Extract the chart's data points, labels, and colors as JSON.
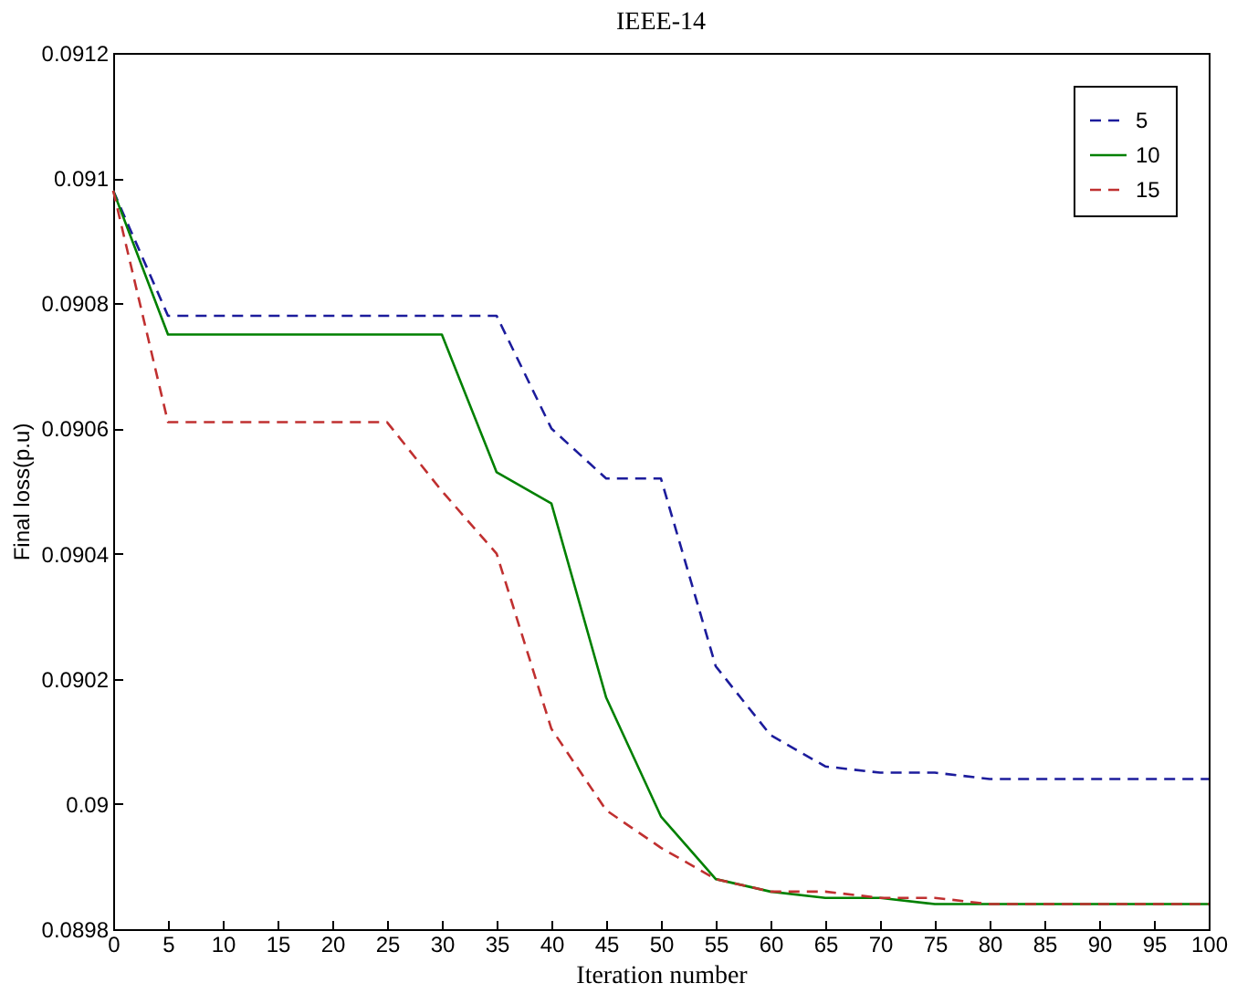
{
  "chart_data": {
    "type": "line",
    "title": "IEEE-14",
    "xlabel": "Iteration number",
    "ylabel": "Final loss(p.u)",
    "x": [
      0,
      5,
      10,
      15,
      20,
      25,
      30,
      35,
      40,
      45,
      50,
      55,
      60,
      65,
      70,
      75,
      80,
      85,
      90,
      95,
      100
    ],
    "series": [
      {
        "name": "5",
        "color": "#1c1c9c",
        "line_style": "dashed",
        "values": [
          0.09098,
          0.09078,
          0.09078,
          0.09078,
          0.09078,
          0.09078,
          0.09078,
          0.09078,
          0.0906,
          0.09052,
          0.09052,
          0.09022,
          0.09011,
          0.09006,
          0.09005,
          0.09005,
          0.09004,
          0.09004,
          0.09004,
          0.09004,
          0.09004
        ]
      },
      {
        "name": "10",
        "color": "#008000",
        "line_style": "solid",
        "values": [
          0.09098,
          0.09075,
          0.09075,
          0.09075,
          0.09075,
          0.09075,
          0.09075,
          0.09053,
          0.09048,
          0.09017,
          0.08998,
          0.08988,
          0.08986,
          0.08985,
          0.08985,
          0.08984,
          0.08984,
          0.08984,
          0.08984,
          0.08984,
          0.08984
        ]
      },
      {
        "name": "15",
        "color": "#c03030",
        "line_style": "dashed",
        "values": [
          0.09098,
          0.09061,
          0.09061,
          0.09061,
          0.09061,
          0.09061,
          0.0905,
          0.0904,
          0.09012,
          0.08999,
          0.08993,
          0.08988,
          0.08986,
          0.08986,
          0.08985,
          0.08985,
          0.08984,
          0.08984,
          0.08984,
          0.08984,
          0.08984
        ]
      }
    ],
    "xlim": [
      0,
      100
    ],
    "xticks": [
      0,
      5,
      10,
      15,
      20,
      25,
      30,
      35,
      40,
      45,
      50,
      55,
      60,
      65,
      70,
      75,
      80,
      85,
      90,
      95,
      100
    ],
    "ylim": [
      0.0898,
      0.0912
    ],
    "yticks": [
      0.0898,
      0.09,
      0.0902,
      0.0904,
      0.0906,
      0.0908,
      0.091,
      0.0912
    ],
    "grid": false,
    "legend": "top right",
    "marker": "none"
  }
}
